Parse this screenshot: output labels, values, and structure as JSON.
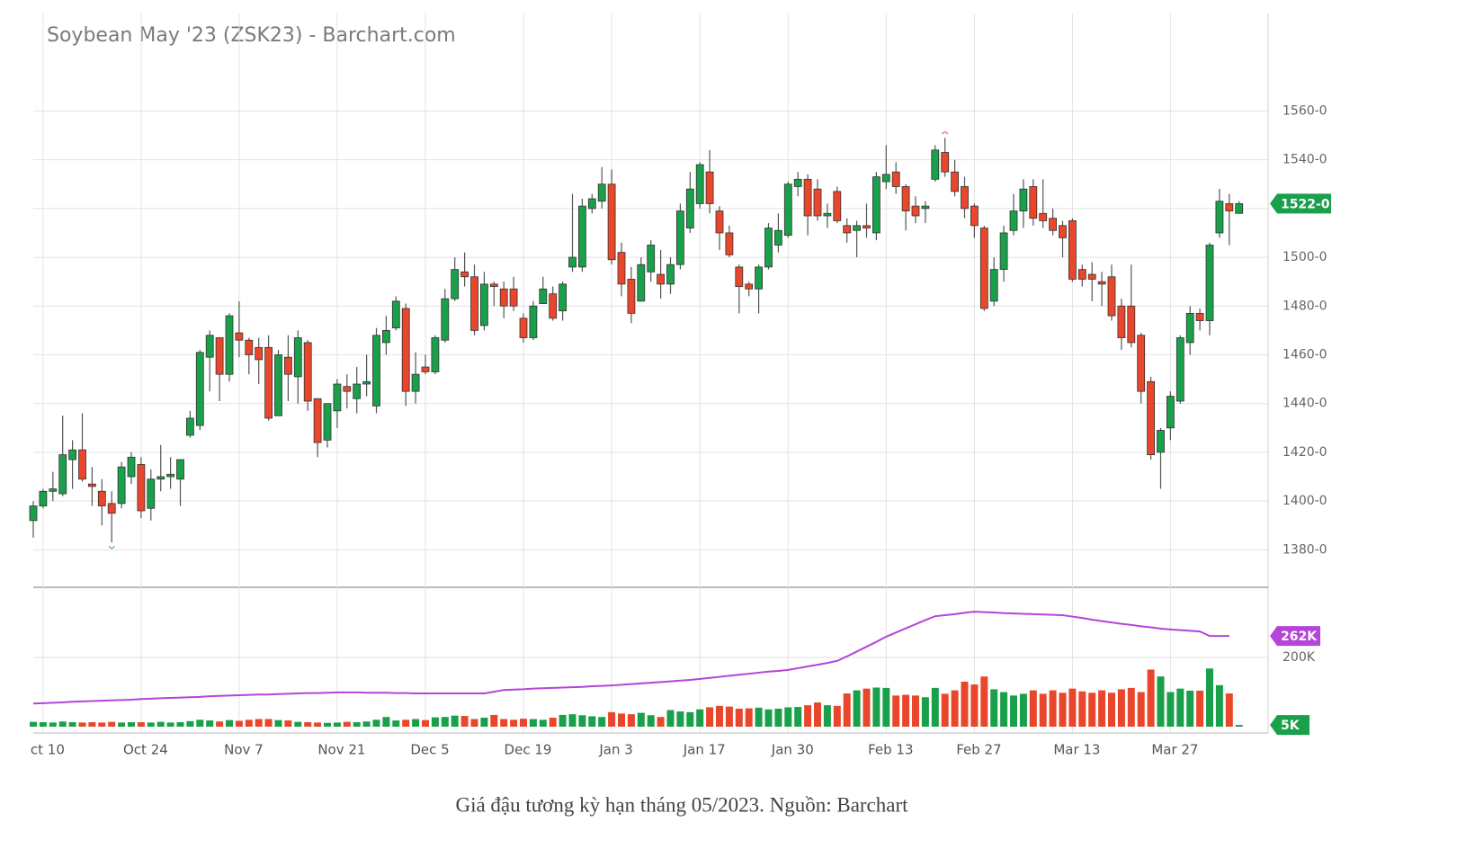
{
  "chart_data": {
    "type": "candlestick",
    "title": "Soybean May '23 (ZSK23) - Barchart.com",
    "caption": "Giá đậu tương kỳ hạn tháng 05/2023. Nguồn: Barchart",
    "categories": [
      null,
      "ct 10",
      null,
      null,
      null,
      null,
      null,
      null,
      null,
      null,
      null,
      "Oct 24",
      null,
      null,
      null,
      null,
      null,
      null,
      null,
      null,
      null,
      "Nov 7",
      null,
      null,
      null,
      null,
      null,
      null,
      null,
      null,
      null,
      "Nov 21",
      null,
      null,
      null,
      null,
      null,
      null,
      null,
      null,
      "Dec 5",
      null,
      null,
      null,
      null,
      null,
      null,
      null,
      null,
      null,
      "Dec 19",
      null,
      null,
      null,
      null,
      null,
      null,
      null,
      null,
      "Jan 3",
      null,
      null,
      null,
      null,
      null,
      null,
      null,
      null,
      "Jan 17",
      null,
      null,
      null,
      null,
      null,
      null,
      null,
      null,
      "Jan 30",
      null,
      null,
      null,
      null,
      null,
      null,
      null,
      null,
      null,
      "Feb 13",
      null,
      null,
      null,
      null,
      null,
      null,
      null,
      null,
      "Feb 27",
      null,
      null,
      null,
      null,
      null,
      null,
      null,
      null,
      null,
      "Mar 13",
      null,
      null,
      null,
      null,
      null,
      null,
      null,
      null,
      null,
      "Mar 27",
      null,
      null,
      null,
      null,
      null,
      null,
      null
    ],
    "open": [
      1392,
      1398,
      1404,
      1403,
      1417,
      1421,
      1407,
      1404,
      1399,
      1399,
      1410,
      1415,
      1397,
      1409,
      1410,
      1409,
      1427,
      1431,
      1459,
      1467,
      1452,
      1469,
      1466,
      1463,
      1463,
      1435,
      1459,
      1451,
      1465,
      1442,
      1425,
      1437,
      1447,
      1442,
      1448,
      1439,
      1465,
      1471,
      1479,
      1445,
      1455,
      1453,
      1466,
      1483,
      1494,
      1492,
      1472,
      1489,
      1487,
      1487,
      1475,
      1467,
      1481,
      1485,
      1478,
      1496,
      1496,
      1520,
      1523,
      1530,
      1502,
      1491,
      1482,
      1494,
      1493,
      1489,
      1497,
      1512,
      1522,
      1535,
      1519,
      1510,
      1496,
      1489,
      1487,
      1496,
      1505,
      1509,
      1529,
      1532,
      1528,
      1517,
      1527,
      1513,
      1511,
      1513,
      1510,
      1531,
      1535,
      1529,
      1521,
      1520,
      1532,
      1543,
      1535,
      1529,
      1521,
      1512,
      1482,
      1495,
      1511,
      1519,
      1529,
      1518,
      1516,
      1513,
      1515,
      1495,
      1493,
      1490,
      1492,
      1480,
      1480,
      1468,
      1449,
      1420,
      1430,
      1441,
      1465,
      1477,
      1474,
      1510,
      1522,
      1518
    ],
    "high": [
      1400,
      1405,
      1412,
      1435,
      1425,
      1436,
      1414,
      1409,
      1404,
      1416,
      1420,
      1418,
      1413,
      1423,
      1418,
      1417,
      1437,
      1462,
      1470,
      1467,
      1477,
      1482,
      1467,
      1467,
      1468,
      1462,
      1468,
      1470,
      1466,
      1442,
      1440,
      1450,
      1452,
      1455,
      1460,
      1471,
      1476,
      1484,
      1481,
      1461,
      1460,
      1468,
      1487,
      1500,
      1502,
      1497,
      1494,
      1490,
      1490,
      1492,
      1477,
      1482,
      1492,
      1488,
      1490,
      1526,
      1524,
      1526,
      1537,
      1536,
      1506,
      1496,
      1500,
      1507,
      1503,
      1500,
      1522,
      1535,
      1539,
      1544,
      1521,
      1513,
      1497,
      1490,
      1497,
      1514,
      1518,
      1531,
      1535,
      1534,
      1532,
      1522,
      1529,
      1516,
      1515,
      1522,
      1535,
      1546,
      1539,
      1530,
      1525,
      1523,
      1546,
      1549,
      1540,
      1533,
      1522,
      1513,
      1500,
      1513,
      1526,
      1532,
      1532,
      1532,
      1520,
      1515,
      1516,
      1497,
      1498,
      1494,
      1497,
      1483,
      1497,
      1469,
      1451,
      1430,
      1445,
      1468,
      1480,
      1479,
      1506,
      1528,
      1526,
      1523
    ],
    "low": [
      1385,
      1397,
      1400,
      1402,
      1405,
      1408,
      1398,
      1390,
      1383,
      1397,
      1407,
      1393,
      1392,
      1404,
      1405,
      1398,
      1426,
      1429,
      1445,
      1441,
      1449,
      1459,
      1452,
      1448,
      1433,
      1435,
      1441,
      1440,
      1437,
      1418,
      1422,
      1430,
      1438,
      1436,
      1443,
      1436,
      1460,
      1470,
      1439,
      1440,
      1452,
      1452,
      1465,
      1482,
      1488,
      1468,
      1470,
      1480,
      1475,
      1478,
      1465,
      1466,
      1482,
      1474,
      1474,
      1494,
      1494,
      1518,
      1520,
      1497,
      1484,
      1473,
      1482,
      1490,
      1483,
      1485,
      1495,
      1510,
      1520,
      1518,
      1503,
      1500,
      1477,
      1484,
      1477,
      1495,
      1502,
      1508,
      1525,
      1509,
      1515,
      1512,
      1514,
      1506,
      1500,
      1508,
      1507,
      1528,
      1526,
      1511,
      1514,
      1514,
      1531,
      1533,
      1525,
      1516,
      1508,
      1478,
      1480,
      1490,
      1509,
      1512,
      1513,
      1512,
      1509,
      1500,
      1490,
      1488,
      1482,
      1480,
      1474,
      1462,
      1463,
      1440,
      1417,
      1405,
      1425,
      1440,
      1460,
      1470,
      1468,
      1508,
      1505,
      1518
    ],
    "close": [
      1398,
      1404,
      1405,
      1419,
      1421,
      1409,
      1406,
      1398,
      1395,
      1414,
      1418,
      1396,
      1409,
      1410,
      1411,
      1417,
      1434,
      1461,
      1468,
      1452,
      1476,
      1466,
      1460,
      1458,
      1434,
      1460,
      1452,
      1467,
      1441,
      1424,
      1440,
      1448,
      1445,
      1448,
      1449,
      1468,
      1470,
      1482,
      1445,
      1452,
      1453,
      1467,
      1483,
      1495,
      1492,
      1470,
      1489,
      1488,
      1480,
      1480,
      1467,
      1480,
      1487,
      1475,
      1489,
      1500,
      1521,
      1524,
      1530,
      1499,
      1489,
      1477,
      1497,
      1505,
      1489,
      1497,
      1519,
      1528,
      1538,
      1522,
      1510,
      1501,
      1488,
      1487,
      1496,
      1512,
      1511,
      1530,
      1532,
      1517,
      1517,
      1518,
      1515,
      1510,
      1513,
      1512,
      1533,
      1534,
      1529,
      1519,
      1517,
      1521,
      1544,
      1535,
      1527,
      1520,
      1513,
      1479,
      1495,
      1510,
      1519,
      1528,
      1516,
      1515,
      1511,
      1508,
      1491,
      1491,
      1491,
      1489,
      1476,
      1467,
      1465,
      1445,
      1419,
      1429,
      1443,
      1467,
      1477,
      1474,
      1505,
      1523,
      1519,
      1522
    ],
    "up_color": "#1a9f4b",
    "down_color": "#e8472b",
    "ylim": [
      1365,
      1600
    ],
    "yticks": [
      {
        "value": 1380,
        "label": "1380-0"
      },
      {
        "value": 1400,
        "label": "1400-0"
      },
      {
        "value": 1420,
        "label": "1420-0"
      },
      {
        "value": 1440,
        "label": "1440-0"
      },
      {
        "value": 1460,
        "label": "1460-0"
      },
      {
        "value": 1480,
        "label": "1480-0"
      },
      {
        "value": 1500,
        "label": "1500-0"
      },
      {
        "value": 1520,
        "label": "1520-0"
      },
      {
        "value": 1540,
        "label": "1540-0"
      },
      {
        "value": 1560,
        "label": "1560-0"
      }
    ],
    "last_price": {
      "value": 1522,
      "label": "1522-0"
    },
    "volume": [
      14000,
      13000,
      12000,
      15000,
      13000,
      12000,
      13000,
      12000,
      14000,
      12000,
      13000,
      13000,
      12000,
      14000,
      12000,
      13000,
      16000,
      20000,
      18000,
      15000,
      19000,
      17000,
      20000,
      22000,
      22000,
      19000,
      18000,
      14000,
      13000,
      12000,
      11000,
      12000,
      14000,
      13000,
      15000,
      20000,
      28000,
      18000,
      20000,
      22000,
      19000,
      27000,
      28000,
      32000,
      31000,
      22000,
      26000,
      34000,
      22000,
      20000,
      23000,
      22000,
      20000,
      26000,
      34000,
      36000,
      33000,
      30000,
      28000,
      42000,
      38000,
      36000,
      40000,
      33000,
      28000,
      48000,
      44000,
      42000,
      50000,
      56000,
      60000,
      58000,
      52000,
      53000,
      55000,
      50000,
      52000,
      56000,
      57000,
      62000,
      70000,
      62000,
      60000,
      96000,
      105000,
      110000,
      113000,
      112000,
      90000,
      92000,
      90000,
      85000,
      112000,
      95000,
      105000,
      130000,
      122000,
      145000,
      108000,
      100000,
      90000,
      95000,
      105000,
      95000,
      105000,
      98000,
      110000,
      102000,
      98000,
      105000,
      98000,
      108000,
      112000,
      100000,
      165000,
      145000,
      100000,
      110000,
      104000,
      104000,
      168000,
      120000,
      96000,
      5000
    ],
    "volume_ma": [
      67000,
      68000,
      69000,
      70000,
      72000,
      73000,
      74000,
      75000,
      76000,
      77000,
      78000,
      80000,
      81000,
      82000,
      83000,
      84000,
      85000,
      86000,
      88000,
      89000,
      90000,
      91000,
      92000,
      93000,
      93000,
      94000,
      95000,
      96000,
      97000,
      97000,
      98000,
      99000,
      99000,
      99000,
      98000,
      98000,
      98000,
      97000,
      97000,
      96000,
      96000,
      96000,
      96000,
      96000,
      96000,
      96000,
      96000,
      101000,
      106000,
      107000,
      108000,
      110000,
      111000,
      112000,
      113000,
      114000,
      115000,
      117000,
      118000,
      119000,
      121000,
      123000,
      125000,
      127000,
      129000,
      131000,
      133000,
      135000,
      138000,
      141000,
      144000,
      147000,
      150000,
      153000,
      156000,
      159000,
      161000,
      164000,
      169000,
      174000,
      179000,
      184000,
      190000,
      203000,
      217000,
      231000,
      245000,
      260000,
      272000,
      284000,
      296000,
      308000,
      319000,
      322000,
      325000,
      329000,
      332000,
      331000,
      330000,
      328000,
      327000,
      326000,
      325000,
      324000,
      323000,
      322000,
      318000,
      314000,
      309000,
      305000,
      301000,
      297000,
      294000,
      290000,
      287000,
      283000,
      281000,
      279000,
      277000,
      275000,
      262000,
      262000,
      262000,
      null
    ],
    "volume_ma_color": "#b544d8",
    "volume_ylim": [
      0,
      400000
    ],
    "volume_yticks": [
      {
        "value": 200000,
        "label": "200K"
      }
    ],
    "last_volume_ma": {
      "value": 262000,
      "label": "262K"
    },
    "last_volume": {
      "value": 5000,
      "label": "5K"
    },
    "grid": true
  }
}
